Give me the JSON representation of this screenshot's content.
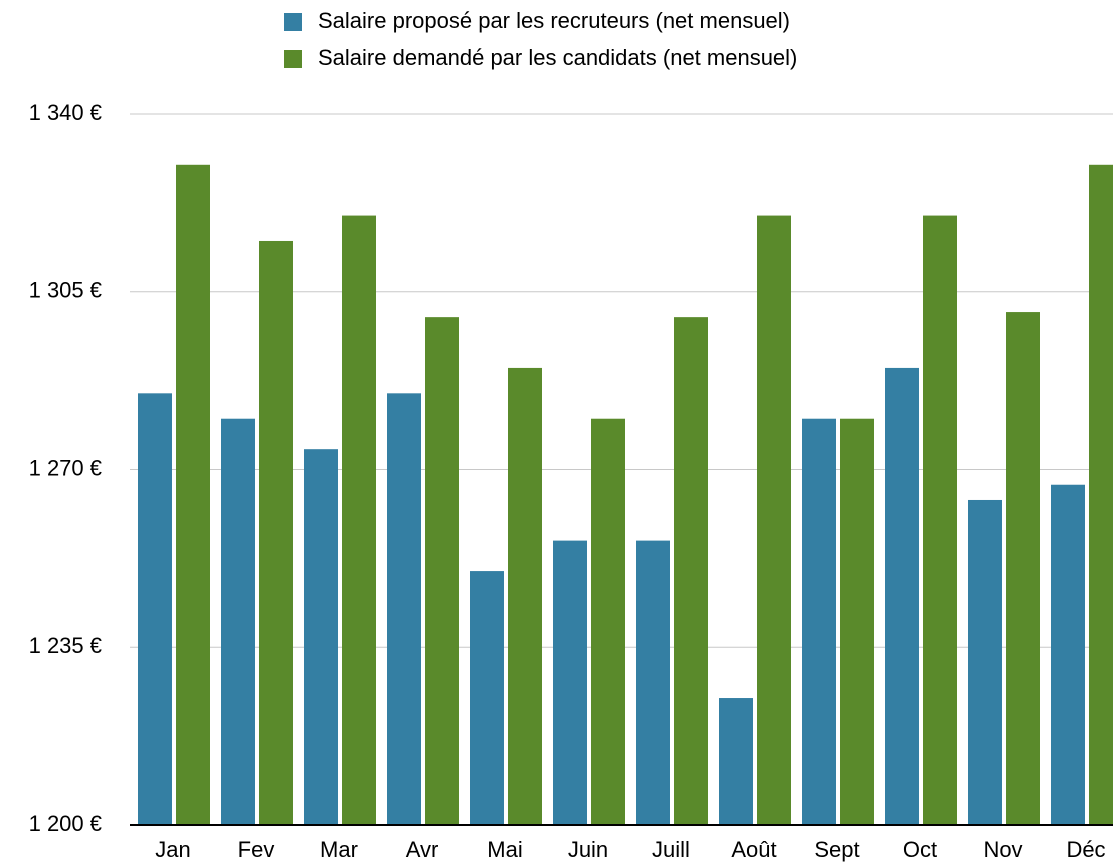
{
  "chart_data": {
    "type": "bar",
    "categories": [
      "Jan",
      "Fev",
      "Mar",
      "Avr",
      "Mai",
      "Juin",
      "Juill",
      "Août",
      "Sept",
      "Oct",
      "Nov",
      "Déc"
    ],
    "series": [
      {
        "name": "Salaire proposé par les recruteurs (net mensuel)",
        "color": "#347fa3",
        "values": [
          1285,
          1280,
          1274,
          1285,
          1250,
          1256,
          1256,
          1225,
          1280,
          1290,
          1264,
          1267
        ]
      },
      {
        "name": "Salaire demandé par les candidats (net mensuel)",
        "color": "#5a8a2b",
        "values": [
          1330,
          1315,
          1320,
          1300,
          1290,
          1280,
          1300,
          1320,
          1280,
          1320,
          1301,
          1330
        ]
      }
    ],
    "ylim": [
      1200,
      1340
    ],
    "yticks": [
      {
        "value": 1200,
        "label": "1 200 €"
      },
      {
        "value": 1235,
        "label": "1 235 €"
      },
      {
        "value": 1270,
        "label": "1 270 €"
      },
      {
        "value": 1305,
        "label": "1 305 €"
      },
      {
        "value": 1340,
        "label": "1 340 €"
      }
    ],
    "grid": true
  }
}
